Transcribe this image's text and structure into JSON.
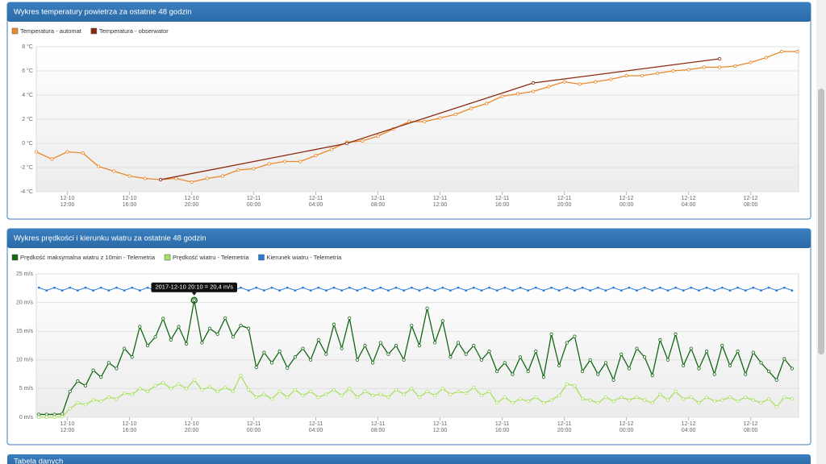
{
  "page": {
    "table_title": "Tabela danych"
  },
  "chart_data": [
    {
      "type": "line",
      "title": "Wykres temperatury powietrza za ostatnie 48 godzin",
      "xlim": [
        "2017-12-10 10:00",
        "2017-12-12 11:05"
      ],
      "xticks": [
        {
          "value": "2017-12-10 12:00",
          "label": "12-10 12:00"
        },
        {
          "value": "2017-12-10 16:00",
          "label": "12-10 16:00"
        },
        {
          "value": "2017-12-10 20:00",
          "label": "12-10 20:00"
        },
        {
          "value": "2017-12-11 00:00",
          "label": "12-11 00:00"
        },
        {
          "value": "2017-12-11 04:00",
          "label": "12-11 04:00"
        },
        {
          "value": "2017-12-11 08:00",
          "label": "12-11 08:00"
        },
        {
          "value": "2017-12-11 12:00",
          "label": "12-11 12:00"
        },
        {
          "value": "2017-12-11 16:00",
          "label": "12-11 16:00"
        },
        {
          "value": "2017-12-11 20:00",
          "label": "12-11 20:00"
        },
        {
          "value": "2017-12-12 00:00",
          "label": "12-12 00:00"
        },
        {
          "value": "2017-12-12 04:00",
          "label": "12-12 04:00"
        },
        {
          "value": "2017-12-12 08:00",
          "label": "12-12 08:00"
        }
      ],
      "ylim": [
        -4,
        8
      ],
      "yticks": [
        {
          "value": -4,
          "label": "-4 °C"
        },
        {
          "value": -2,
          "label": "-2 °C"
        },
        {
          "value": 0,
          "label": "0 °C"
        },
        {
          "value": 2,
          "label": "2 °C"
        },
        {
          "value": 4,
          "label": "4 °C"
        },
        {
          "value": 6,
          "label": "6 °C"
        },
        {
          "value": 8,
          "label": "8 °C"
        }
      ],
      "grid": true,
      "series": [
        {
          "name": "Temperatura - automat",
          "color": "#e8892b",
          "x": [
            "2017-12-10 10:00",
            "2017-12-10 11:00",
            "2017-12-10 12:00",
            "2017-12-10 13:00",
            "2017-12-10 14:00",
            "2017-12-10 15:00",
            "2017-12-10 16:00",
            "2017-12-10 17:00",
            "2017-12-10 18:00",
            "2017-12-10 19:00",
            "2017-12-10 20:00",
            "2017-12-10 21:00",
            "2017-12-10 22:00",
            "2017-12-10 23:00",
            "2017-12-11 00:00",
            "2017-12-11 01:00",
            "2017-12-11 02:00",
            "2017-12-11 03:00",
            "2017-12-11 04:00",
            "2017-12-11 05:00",
            "2017-12-11 06:00",
            "2017-12-11 07:00",
            "2017-12-11 08:00",
            "2017-12-11 09:00",
            "2017-12-11 10:00",
            "2017-12-11 11:00",
            "2017-12-11 12:00",
            "2017-12-11 13:00",
            "2017-12-11 14:00",
            "2017-12-11 15:00",
            "2017-12-11 16:00",
            "2017-12-11 17:00",
            "2017-12-11 18:00",
            "2017-12-11 19:00",
            "2017-12-11 20:00",
            "2017-12-11 21:00",
            "2017-12-11 22:00",
            "2017-12-11 23:00",
            "2017-12-12 00:00",
            "2017-12-12 01:00",
            "2017-12-12 02:00",
            "2017-12-12 03:00",
            "2017-12-12 04:00",
            "2017-12-12 05:00",
            "2017-12-12 06:00",
            "2017-12-12 07:00",
            "2017-12-12 08:00",
            "2017-12-12 09:00",
            "2017-12-12 10:00",
            "2017-12-12 11:00"
          ],
          "values": [
            -0.7,
            -1.3,
            -0.7,
            -0.8,
            -1.9,
            -2.3,
            -2.7,
            -2.9,
            -3.0,
            -2.9,
            -3.2,
            -2.9,
            -2.7,
            -2.2,
            -2.1,
            -1.7,
            -1.5,
            -1.5,
            -1.0,
            -0.5,
            0.1,
            0.2,
            0.6,
            1.2,
            1.8,
            1.8,
            2.1,
            2.4,
            2.9,
            3.3,
            3.9,
            4.1,
            4.3,
            4.7,
            5.1,
            4.9,
            5.1,
            5.3,
            5.6,
            5.6,
            5.8,
            6.0,
            6.1,
            6.3,
            6.3,
            6.4,
            6.7,
            7.1,
            7.6,
            7.6
          ]
        },
        {
          "name": "Temperatura - obserwator",
          "color": "#8b2a0e",
          "x": [
            "2017-12-10 18:00",
            "2017-12-11 06:00",
            "2017-12-11 18:00",
            "2017-12-12 06:00"
          ],
          "values": [
            -3.0,
            0.0,
            5.0,
            7.0
          ]
        }
      ]
    },
    {
      "type": "line",
      "title": "Wykres prędkości i kierunku wiatru za ostatnie 48 godzin",
      "xlim": [
        "2017-12-10 10:00",
        "2017-12-12 11:05"
      ],
      "xticks": [
        {
          "value": "2017-12-10 12:00",
          "label": "12-10 12:00"
        },
        {
          "value": "2017-12-10 16:00",
          "label": "12-10 16:00"
        },
        {
          "value": "2017-12-10 20:00",
          "label": "12-10 20:00"
        },
        {
          "value": "2017-12-11 00:00",
          "label": "12-11 00:00"
        },
        {
          "value": "2017-12-11 04:00",
          "label": "12-11 04:00"
        },
        {
          "value": "2017-12-11 08:00",
          "label": "12-11 08:00"
        },
        {
          "value": "2017-12-11 12:00",
          "label": "12-11 12:00"
        },
        {
          "value": "2017-12-11 16:00",
          "label": "12-11 16:00"
        },
        {
          "value": "2017-12-11 20:00",
          "label": "12-11 20:00"
        },
        {
          "value": "2017-12-12 00:00",
          "label": "12-12 00:00"
        },
        {
          "value": "2017-12-12 04:00",
          "label": "12-12 04:00"
        },
        {
          "value": "2017-12-12 08:00",
          "label": "12-12 08:00"
        }
      ],
      "ylim": [
        0,
        25
      ],
      "yticks": [
        {
          "value": 0,
          "label": "0 m/s"
        },
        {
          "value": 5,
          "label": "5 m/s"
        },
        {
          "value": 10,
          "label": "10 m/s"
        },
        {
          "value": 15,
          "label": "15 m/s"
        },
        {
          "value": 20,
          "label": "20 m/s"
        },
        {
          "value": 25,
          "label": "25 m/s"
        }
      ],
      "grid": true,
      "tooltip": "2017-12-10 20:10 = 20,4 m/s",
      "x": [
        "2017-12-10 10:10",
        "2017-12-10 10:40",
        "2017-12-10 11:10",
        "2017-12-10 11:40",
        "2017-12-10 12:10",
        "2017-12-10 12:40",
        "2017-12-10 13:10",
        "2017-12-10 13:40",
        "2017-12-10 14:10",
        "2017-12-10 14:40",
        "2017-12-10 15:10",
        "2017-12-10 15:40",
        "2017-12-10 16:10",
        "2017-12-10 16:40",
        "2017-12-10 17:10",
        "2017-12-10 17:40",
        "2017-12-10 18:10",
        "2017-12-10 18:40",
        "2017-12-10 19:10",
        "2017-12-10 19:40",
        "2017-12-10 20:10",
        "2017-12-10 20:40",
        "2017-12-10 21:10",
        "2017-12-10 21:40",
        "2017-12-10 22:10",
        "2017-12-10 22:40",
        "2017-12-10 23:10",
        "2017-12-10 23:40",
        "2017-12-11 00:10",
        "2017-12-11 00:40",
        "2017-12-11 01:10",
        "2017-12-11 01:40",
        "2017-12-11 02:10",
        "2017-12-11 02:40",
        "2017-12-11 03:10",
        "2017-12-11 03:40",
        "2017-12-11 04:10",
        "2017-12-11 04:40",
        "2017-12-11 05:10",
        "2017-12-11 05:40",
        "2017-12-11 06:10",
        "2017-12-11 06:40",
        "2017-12-11 07:10",
        "2017-12-11 07:40",
        "2017-12-11 08:10",
        "2017-12-11 08:40",
        "2017-12-11 09:10",
        "2017-12-11 09:40",
        "2017-12-11 10:10",
        "2017-12-11 10:40",
        "2017-12-11 11:10",
        "2017-12-11 11:40",
        "2017-12-11 12:10",
        "2017-12-11 12:40",
        "2017-12-11 13:10",
        "2017-12-11 13:40",
        "2017-12-11 14:10",
        "2017-12-11 14:40",
        "2017-12-11 15:10",
        "2017-12-11 15:40",
        "2017-12-11 16:10",
        "2017-12-11 16:40",
        "2017-12-11 17:10",
        "2017-12-11 17:40",
        "2017-12-11 18:10",
        "2017-12-11 18:40",
        "2017-12-11 19:10",
        "2017-12-11 19:40",
        "2017-12-11 20:10",
        "2017-12-11 20:40",
        "2017-12-11 21:10",
        "2017-12-11 21:40",
        "2017-12-11 22:10",
        "2017-12-11 22:40",
        "2017-12-11 23:10",
        "2017-12-11 23:40",
        "2017-12-12 00:10",
        "2017-12-12 00:40",
        "2017-12-12 01:10",
        "2017-12-12 01:40",
        "2017-12-12 02:10",
        "2017-12-12 02:40",
        "2017-12-12 03:10",
        "2017-12-12 03:40",
        "2017-12-12 04:10",
        "2017-12-12 04:40",
        "2017-12-12 05:10",
        "2017-12-12 05:40",
        "2017-12-12 06:10",
        "2017-12-12 06:40",
        "2017-12-12 07:10",
        "2017-12-12 07:40",
        "2017-12-12 08:10",
        "2017-12-12 08:40",
        "2017-12-12 09:10",
        "2017-12-12 09:40",
        "2017-12-12 10:10",
        "2017-12-12 10:40"
      ],
      "series": [
        {
          "name": "Prędkość maksymalna wiatru z 10min - Telemetria",
          "color": "#136613",
          "values": [
            0.5,
            0.5,
            0.5,
            0.6,
            4.5,
            6.3,
            5.5,
            8.2,
            7,
            9.5,
            8.5,
            12,
            10.5,
            15.8,
            12.5,
            14,
            17.2,
            13.5,
            15.8,
            12.8,
            20.4,
            13,
            15.5,
            14.5,
            17.3,
            14,
            16,
            15.5,
            8.7,
            11.3,
            9.5,
            11.5,
            8.6,
            10.5,
            12,
            10,
            13.5,
            11,
            16.2,
            12,
            17.3,
            10,
            12.5,
            9.5,
            13,
            11,
            12.5,
            10,
            16,
            12.5,
            19,
            13,
            16.8,
            10.5,
            13,
            11,
            12.5,
            10,
            11.5,
            8,
            9.5,
            7.5,
            10.5,
            8,
            11.5,
            7,
            14.5,
            9,
            13,
            14.1,
            8,
            10,
            7.5,
            9.5,
            6.5,
            11,
            8.5,
            12,
            10.5,
            7.3,
            13.5,
            10,
            14.5,
            9,
            12,
            8.5,
            11.5,
            7.5,
            12.5,
            9,
            11.5,
            7.5,
            11.3,
            9.5,
            8,
            6.5,
            10.2,
            8.5
          ]
        },
        {
          "name": "Prędkość wiatru - Telemetria",
          "color": "#a8e05f",
          "values": [
            0,
            0,
            0,
            0.1,
            1.5,
            2.5,
            2.2,
            3,
            2.8,
            3.5,
            3.2,
            4.2,
            4,
            5,
            4.5,
            5.5,
            6,
            5,
            5.8,
            5,
            6.5,
            4.8,
            5.3,
            4.5,
            5.2,
            4.5,
            7.3,
            4.8,
            3.5,
            4,
            3.2,
            4.5,
            3.5,
            4.8,
            3.8,
            4.5,
            3.5,
            4,
            4.8,
            3.8,
            5,
            3.5,
            4.5,
            3.8,
            4,
            3.5,
            4.8,
            4,
            5,
            3.5,
            4.5,
            3.8,
            5,
            4,
            4.5,
            4.2,
            5.2,
            3.8,
            4.5,
            2.5,
            3.5,
            2.5,
            3.2,
            2.8,
            3.5,
            2.5,
            3,
            3.8,
            5.8,
            5.5,
            3.2,
            3,
            2.5,
            3.5,
            2.8,
            3.5,
            3,
            3.5,
            3,
            2.5,
            4,
            3,
            4.5,
            3.2,
            3.5,
            2.5,
            3.5,
            2.8,
            3,
            3.5,
            2.8,
            3.5,
            3,
            2.5,
            3.2,
            1.8,
            3.5,
            3.2
          ]
        },
        {
          "name": "Kierunek wiatru - Telemetria",
          "color": "#2b7bd6",
          "values": [
            22.6,
            22.1,
            22.6,
            22.1,
            22.6,
            22.1,
            22.6,
            22.1,
            22.6,
            22.1,
            22.6,
            22.1,
            22.6,
            22.1,
            22.6,
            22.1,
            22.6,
            22.1,
            22.6,
            22.1,
            22.6,
            22.1,
            22.6,
            22.1,
            22.6,
            22.1,
            22.6,
            22.1,
            22.6,
            22.1,
            22.6,
            22.1,
            22.6,
            22.1,
            22.6,
            22.1,
            22.6,
            22.1,
            22.6,
            22.1,
            22.6,
            22.1,
            22.6,
            22.1,
            22.6,
            22.1,
            22.6,
            22.1,
            22.6,
            22.1,
            22.6,
            22.1,
            22.6,
            22.1,
            22.6,
            22.1,
            22.6,
            22.1,
            22.6,
            22.1,
            22.6,
            22.1,
            22.6,
            22.1,
            22.6,
            22.1,
            22.6,
            22.1,
            22.6,
            22.1,
            22.6,
            22.1,
            22.6,
            22.1,
            22.6,
            22.1,
            22.6,
            22.1,
            22.6,
            22.1,
            22.6,
            22.1,
            22.6,
            22.1,
            22.6,
            22.1,
            22.6,
            22.1,
            22.6,
            22.1,
            22.6,
            22.1,
            22.6,
            22.1,
            22.6,
            22.1,
            22.6,
            22.1
          ]
        }
      ]
    }
  ]
}
